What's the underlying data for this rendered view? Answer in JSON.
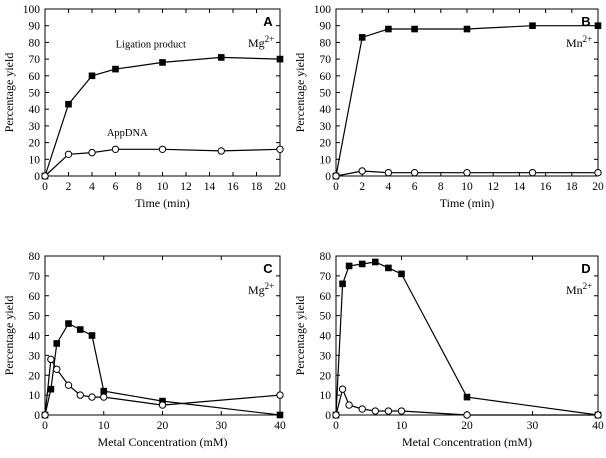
{
  "chart_data": [
    {
      "type": "line",
      "letter": "A",
      "metal": "Mg",
      "charge": "2+",
      "xlabel": "Time (min)",
      "ylabel": "Percentage yield",
      "xlim": [
        0,
        20
      ],
      "ylim": [
        0,
        100
      ],
      "xticks": [
        0,
        2,
        4,
        6,
        8,
        10,
        12,
        14,
        16,
        18,
        20
      ],
      "yticks": [
        0,
        10,
        20,
        30,
        40,
        50,
        60,
        70,
        80,
        90,
        100
      ],
      "series": [
        {
          "name": "Ligation product",
          "marker": "square",
          "x": [
            0,
            2,
            4,
            6,
            10,
            15,
            20
          ],
          "y": [
            0,
            43,
            60,
            64,
            68,
            71,
            70
          ]
        },
        {
          "name": "AppDNA",
          "marker": "circle",
          "x": [
            0,
            2,
            4,
            6,
            10,
            15,
            20
          ],
          "y": [
            0,
            13,
            14,
            16,
            16,
            15,
            16
          ]
        }
      ],
      "annotations": [
        {
          "text": "Ligation product",
          "x": 9.0,
          "y": 77
        },
        {
          "text": "AppDNA",
          "x": 7.0,
          "y": 24
        }
      ]
    },
    {
      "type": "line",
      "letter": "B",
      "metal": "Mn",
      "charge": "2+",
      "xlabel": "Time (min)",
      "ylabel": "Percentage yield",
      "xlim": [
        0,
        20
      ],
      "ylim": [
        0,
        100
      ],
      "xticks": [
        0,
        2,
        4,
        6,
        8,
        10,
        12,
        14,
        16,
        18,
        20
      ],
      "yticks": [
        0,
        10,
        20,
        30,
        40,
        50,
        60,
        70,
        80,
        90,
        100
      ],
      "series": [
        {
          "name": "Ligation product",
          "marker": "square",
          "x": [
            0,
            2,
            4,
            6,
            10,
            15,
            20
          ],
          "y": [
            0,
            83,
            88,
            88,
            88,
            90,
            90
          ]
        },
        {
          "name": "AppDNA",
          "marker": "circle",
          "x": [
            0,
            2,
            4,
            6,
            10,
            15,
            20
          ],
          "y": [
            0,
            3,
            2,
            2,
            2,
            2,
            2
          ]
        }
      ],
      "annotations": []
    },
    {
      "type": "line",
      "letter": "C",
      "metal": "Mg",
      "charge": "2+",
      "xlabel": "Metal Concentration (mM)",
      "ylabel": "Percentage yield",
      "xlim": [
        0,
        40
      ],
      "ylim": [
        0,
        80
      ],
      "xticks": [
        0,
        10,
        20,
        30,
        40
      ],
      "yticks": [
        0,
        10,
        20,
        30,
        40,
        50,
        60,
        70,
        80
      ],
      "series": [
        {
          "name": "Ligation product",
          "marker": "square",
          "x": [
            0,
            1,
            2,
            4,
            6,
            8,
            10,
            20,
            40
          ],
          "y": [
            0,
            13,
            36,
            46,
            43,
            40,
            12,
            7,
            0
          ]
        },
        {
          "name": "AppDNA",
          "marker": "circle",
          "x": [
            0,
            1,
            2,
            4,
            6,
            8,
            10,
            20,
            40
          ],
          "y": [
            0,
            28,
            23,
            15,
            10,
            9,
            9,
            5,
            10
          ]
        }
      ],
      "annotations": []
    },
    {
      "type": "line",
      "letter": "D",
      "metal": "Mn",
      "charge": "2+",
      "xlabel": "Metal Concentration (mM)",
      "ylabel": "Percentage yield",
      "xlim": [
        0,
        40
      ],
      "ylim": [
        0,
        80
      ],
      "xticks": [
        0,
        10,
        20,
        30,
        40
      ],
      "yticks": [
        0,
        10,
        20,
        30,
        40,
        50,
        60,
        70,
        80
      ],
      "series": [
        {
          "name": "Ligation product",
          "marker": "square",
          "x": [
            0,
            1,
            2,
            4,
            6,
            8,
            10,
            20,
            40
          ],
          "y": [
            0,
            66,
            75,
            76,
            77,
            74,
            71,
            9,
            0
          ]
        },
        {
          "name": "AppDNA",
          "marker": "circle",
          "x": [
            0,
            1,
            2,
            4,
            6,
            8,
            10,
            20,
            40
          ],
          "y": [
            0,
            13,
            5,
            3,
            2,
            2,
            2,
            0,
            0
          ]
        }
      ],
      "annotations": []
    }
  ]
}
